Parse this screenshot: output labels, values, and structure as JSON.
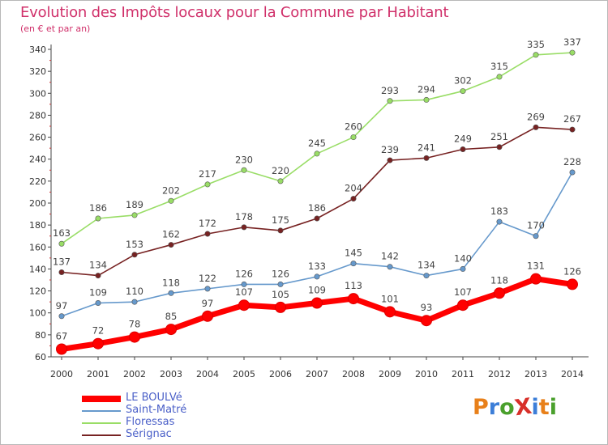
{
  "title": "Evolution des Impôts locaux pour la Commune par Habitant",
  "subtitle": "(en € et par an)",
  "logo": {
    "text": "ProXiti",
    "colors": [
      "#e8801a",
      "#3c7ed8",
      "#4aa02c",
      "#d8302a",
      "#3c7ed8",
      "#e8801a",
      "#4aa02c"
    ]
  },
  "chart_data": {
    "type": "line",
    "title": "Evolution des Impôts locaux pour la Commune par Habitant",
    "subtitle": "(en € et par an)",
    "xlabel": "",
    "ylabel": "",
    "ylim": [
      60,
      340
    ],
    "yticks": [
      60,
      80,
      100,
      120,
      140,
      160,
      180,
      200,
      220,
      240,
      260,
      280,
      300,
      320,
      340
    ],
    "grid": false,
    "legend_position": "bottom-left",
    "x": [
      "2000",
      "2001",
      "2002",
      "2003",
      "2004",
      "2005",
      "2006",
      "2007",
      "2008",
      "2009",
      "2010",
      "2011",
      "2012",
      "2013",
      "2014"
    ],
    "series": [
      {
        "name": "LE BOULVé",
        "color": "#ff0000",
        "values": [
          67,
          72,
          78,
          85,
          97,
          107,
          105,
          109,
          113,
          101,
          93,
          107,
          118,
          131,
          126
        ]
      },
      {
        "name": "Saint-Matré",
        "color": "#6699cc",
        "values": [
          97,
          109,
          110,
          118,
          122,
          126,
          126,
          133,
          145,
          142,
          134,
          140,
          183,
          170,
          228
        ]
      },
      {
        "name": "Floressas",
        "color": "#99dd66",
        "values": [
          163,
          186,
          189,
          202,
          217,
          230,
          220,
          245,
          260,
          293,
          294,
          302,
          315,
          335,
          337
        ]
      },
      {
        "name": "Sérignac",
        "color": "#772222",
        "values": [
          137,
          134,
          153,
          162,
          172,
          178,
          175,
          186,
          204,
          239,
          241,
          249,
          251,
          269,
          267
        ]
      }
    ]
  }
}
